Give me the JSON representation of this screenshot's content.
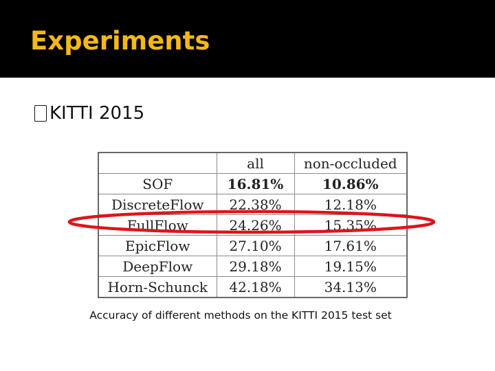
{
  "slide": {
    "title": "Experiments",
    "bullet_glyph": "",
    "bullet_text": "KITTI 2015",
    "caption": "Accuracy of different methods on the KITTI 2015 test set"
  },
  "table": {
    "headers": [
      "",
      "all",
      "non-occluded"
    ],
    "rows": [
      {
        "method": "SOF",
        "all": "16.81%",
        "non_occluded": "10.86%",
        "bold": true
      },
      {
        "method": "DiscreteFlow",
        "all": "22.38%",
        "non_occluded": "12.18%",
        "bold": false
      },
      {
        "method": "FullFlow",
        "all": "24.26%",
        "non_occluded": "15.35%",
        "bold": false,
        "highlighted": true
      },
      {
        "method": "EpicFlow",
        "all": "27.10%",
        "non_occluded": "17.61%",
        "bold": false
      },
      {
        "method": "DeepFlow",
        "all": "29.18%",
        "non_occluded": "19.15%",
        "bold": false
      },
      {
        "method": "Horn-Schunck",
        "all": "42.18%",
        "non_occluded": "34.13%",
        "bold": false
      }
    ]
  },
  "colors": {
    "title": "#f5b819",
    "header_band": "#000000",
    "highlight": "#e0141b"
  }
}
